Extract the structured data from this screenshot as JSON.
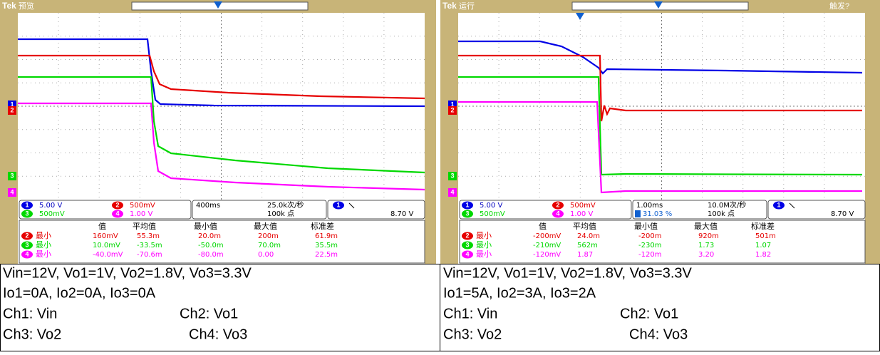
{
  "panels": [
    {
      "brand": "Tek",
      "status": "预览",
      "channels": [
        {
          "ch": "1",
          "scale": "5.00 V"
        },
        {
          "ch": "2",
          "scale": "500mV"
        },
        {
          "ch": "3",
          "scale": "500mV"
        },
        {
          "ch": "4",
          "scale": "1.00 V"
        }
      ],
      "timebase": "400ms",
      "sample_rate": "25.0k次/秒",
      "record": "100k 点",
      "trigger_ch": "1",
      "trigger_level": "8.70 V",
      "meas_headers": [
        "值",
        "平均值",
        "最小值",
        "最大值",
        "标准差"
      ],
      "meas_rows": [
        {
          "ch": "2",
          "label": "最小",
          "cells": [
            "160mV",
            "55.3m",
            "20.0m",
            "200m",
            "61.9m"
          ]
        },
        {
          "ch": "3",
          "label": "最小",
          "cells": [
            "10.0mV",
            "-33.5m",
            "-50.0m",
            "70.0m",
            "35.5m"
          ]
        },
        {
          "ch": "4",
          "label": "最小",
          "cells": [
            "-40.0mV",
            "-70.6m",
            "-80.0m",
            "0.00",
            "22.5m"
          ]
        }
      ],
      "caption": {
        "lines": [
          "Vin=12V, Vo1=1V, Vo2=1.8V, Vo3=3.3V",
          "Io1=0A, Io2=0A, Io3=0A"
        ],
        "channels": [
          [
            "Ch1: Vin",
            "Ch2: Vo1"
          ],
          [
            "Ch3: Vo2",
            "Ch4: Vo3"
          ]
        ]
      }
    },
    {
      "brand": "Tek",
      "status": "运行",
      "trigger_status": "触发?",
      "channels": [
        {
          "ch": "1",
          "scale": "5.00 V"
        },
        {
          "ch": "2",
          "scale": "500mV"
        },
        {
          "ch": "3",
          "scale": "500mV"
        },
        {
          "ch": "4",
          "scale": "1.00 V"
        }
      ],
      "timebase": "1.00ms",
      "sample_rate": "10.0M次/秒",
      "record": "100k 点",
      "trigger_ch": "1",
      "trigger_level": "8.70 V",
      "cursor": "31.03 %",
      "meas_headers": [
        "值",
        "平均值",
        "最小值",
        "最大值",
        "标准差"
      ],
      "meas_rows": [
        {
          "ch": "2",
          "label": "最小",
          "cells": [
            "-200mV",
            "24.0m",
            "-200m",
            "920m",
            "501m"
          ]
        },
        {
          "ch": "3",
          "label": "最小",
          "cells": [
            "-210mV",
            "562m",
            "-230m",
            "1.73",
            "1.07"
          ]
        },
        {
          "ch": "4",
          "label": "最小",
          "cells": [
            "-120mV",
            "1.87",
            "-120m",
            "3.20",
            "1.82"
          ]
        }
      ],
      "caption": {
        "lines": [
          "Vin=12V, Vo1=1V, Vo2=1.8V, Vo3=3.3V",
          "Io1=5A, Io2=3A, Io3=2A"
        ],
        "channels": [
          [
            "Ch1: Vin",
            "Ch2: Vo1"
          ],
          [
            "Ch3: Vo2",
            "Ch4: Vo3"
          ]
        ]
      }
    }
  ]
}
